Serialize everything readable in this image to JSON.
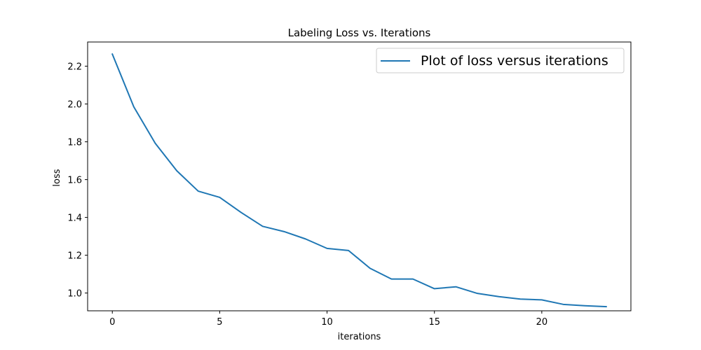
{
  "chart_data": {
    "type": "line",
    "title": "Labeling Loss vs. Iterations",
    "xlabel": "iterations",
    "ylabel": "loss",
    "xlim": [
      -1.15,
      24.15
    ],
    "ylim": [
      0.906,
      2.328
    ],
    "xticks": [
      0,
      5,
      10,
      15,
      20
    ],
    "yticks": [
      1.0,
      1.2,
      1.4,
      1.6,
      1.8,
      2.0,
      2.2
    ],
    "xtick_labels": [
      "0",
      "5",
      "10",
      "15",
      "20"
    ],
    "ytick_labels": [
      "1.0",
      "1.2",
      "1.4",
      "1.6",
      "1.8",
      "2.0",
      "2.2"
    ],
    "grid": false,
    "legend_position": "top-right",
    "series": [
      {
        "name": "Plot of loss versus iterations",
        "color": "#1f77b4",
        "x": [
          0,
          1,
          2,
          3,
          4,
          5,
          6,
          7,
          8,
          9,
          10,
          11,
          12,
          13,
          14,
          15,
          16,
          17,
          18,
          19,
          20,
          21,
          22,
          23
        ],
        "y": [
          2.264,
          1.985,
          1.792,
          1.647,
          1.539,
          1.506,
          1.426,
          1.353,
          1.325,
          1.286,
          1.236,
          1.225,
          1.131,
          1.074,
          1.074,
          1.023,
          1.033,
          0.998,
          0.981,
          0.968,
          0.964,
          0.94,
          0.933,
          0.928
        ]
      }
    ]
  }
}
